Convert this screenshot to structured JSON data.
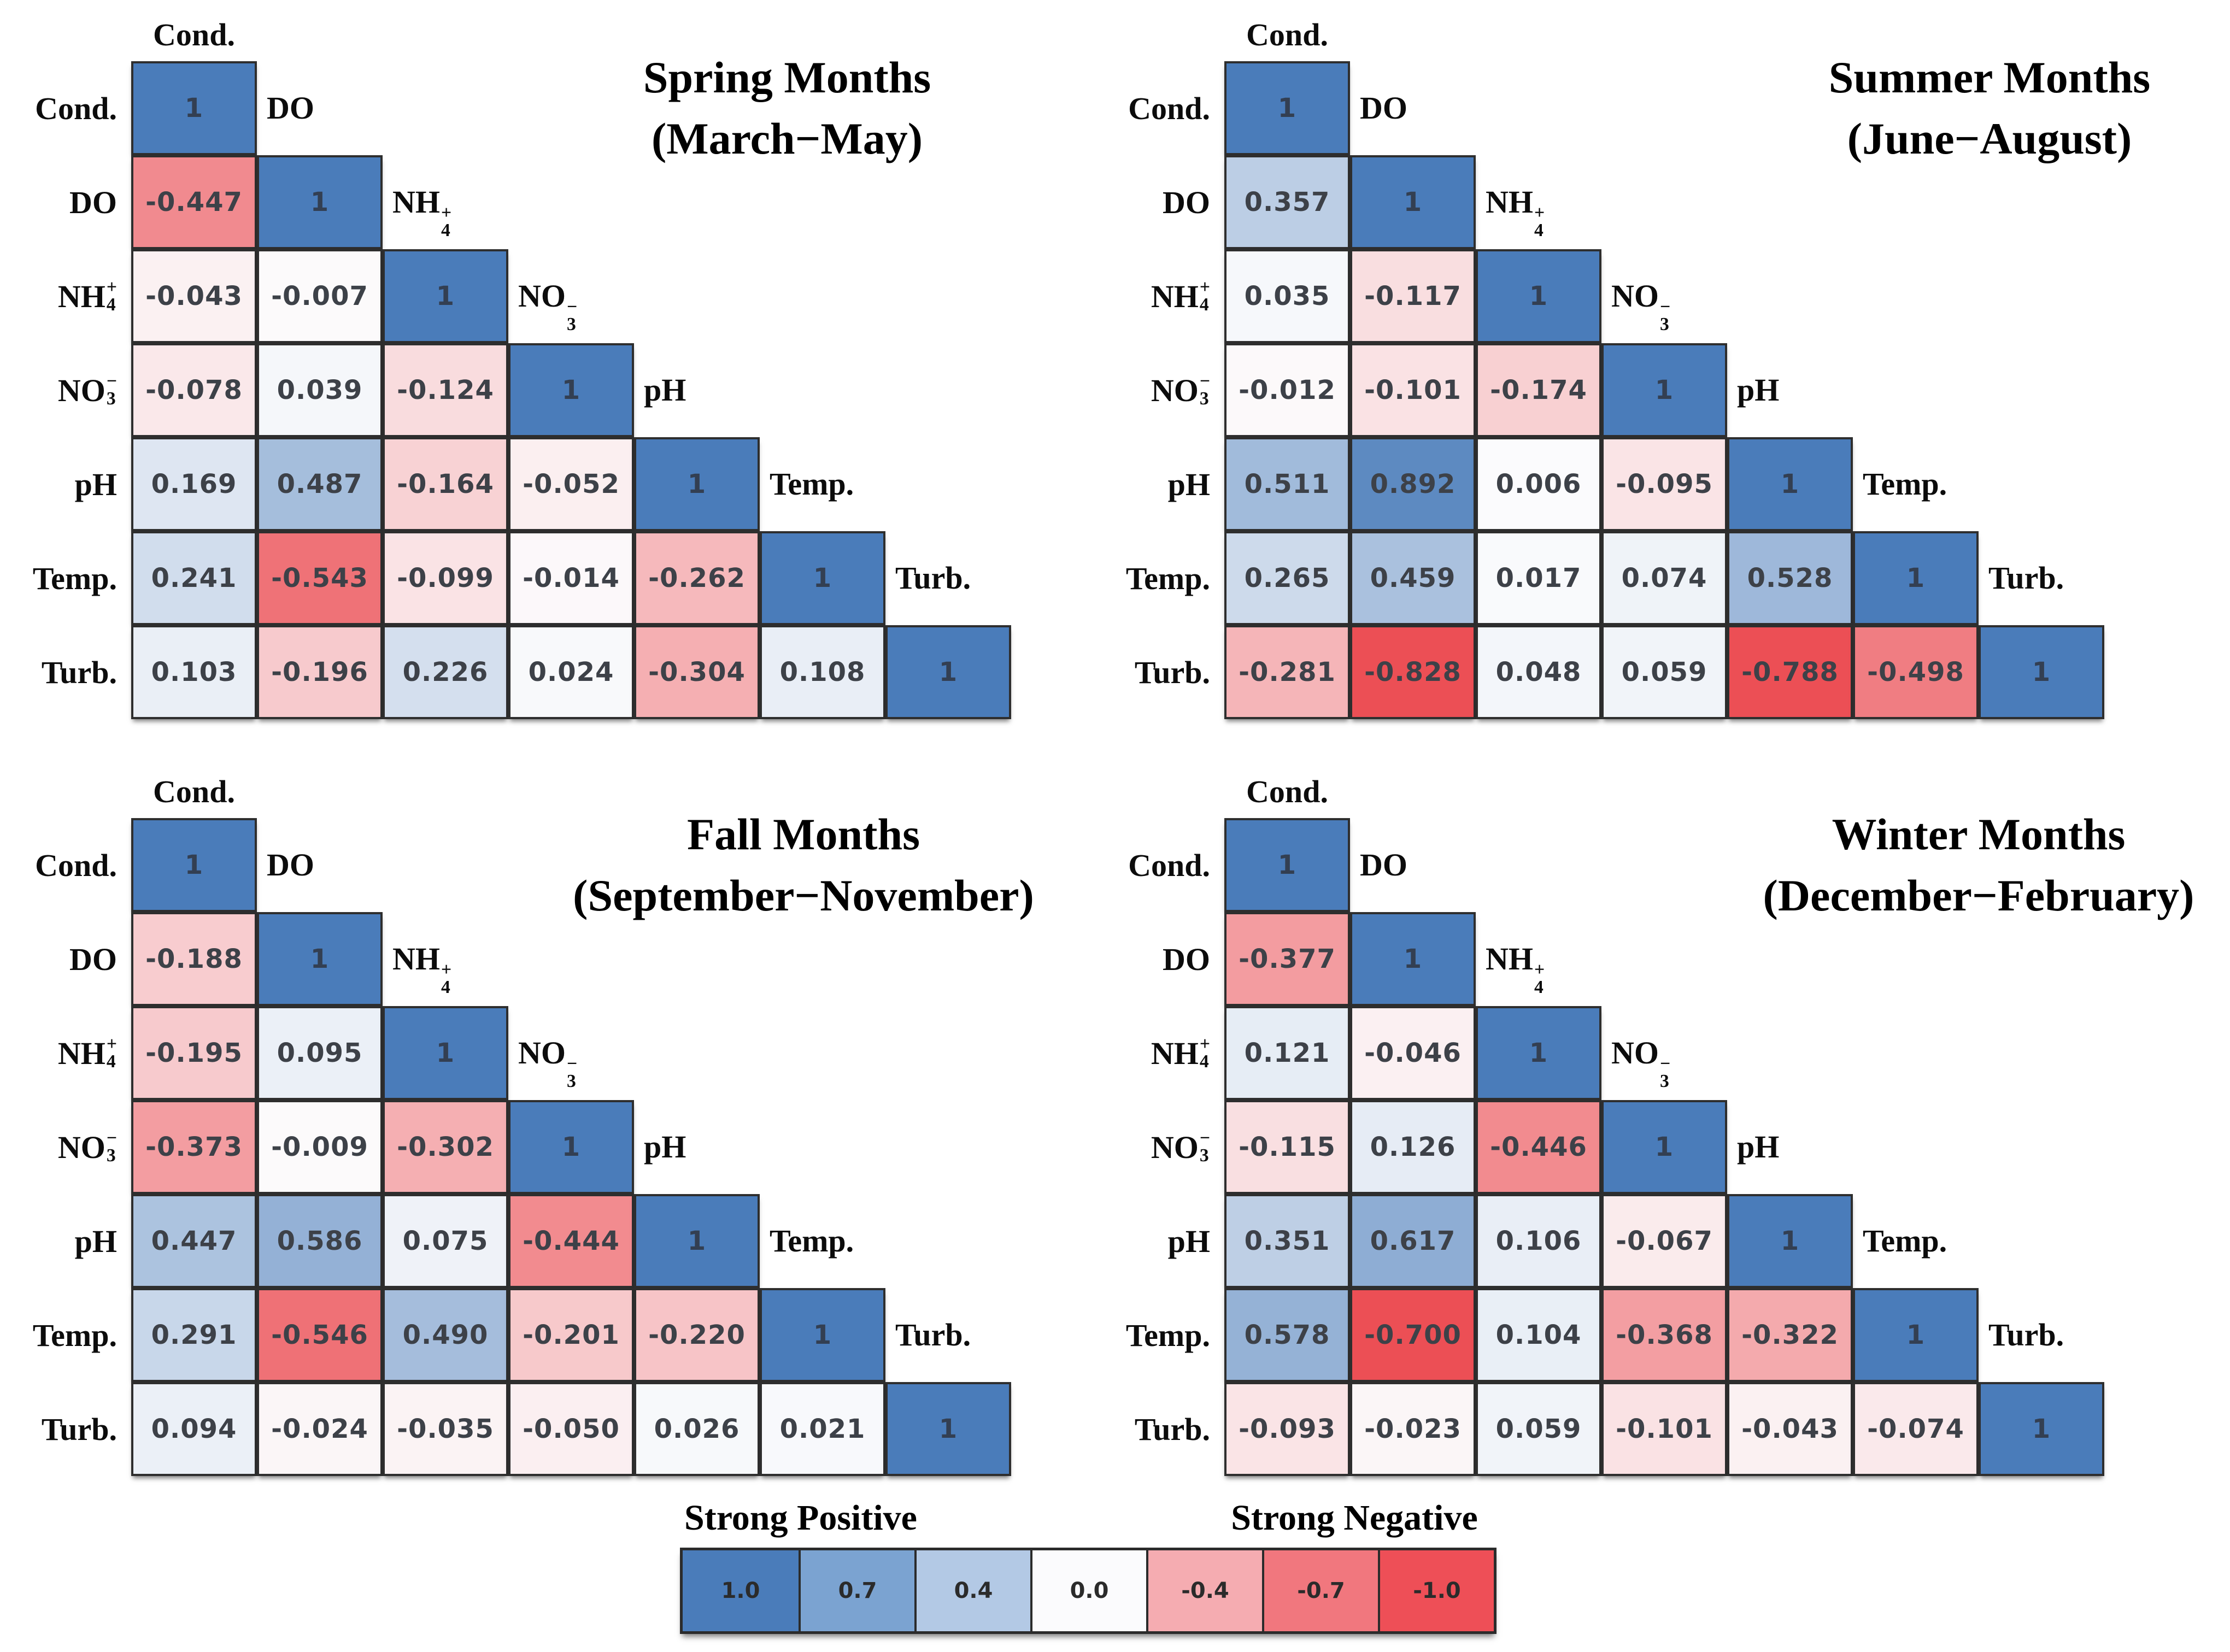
{
  "variables": [
    {
      "base": "Cond."
    },
    {
      "base": "DO"
    },
    {
      "base": "NH",
      "sub": "4",
      "sup": "+"
    },
    {
      "base": "NO",
      "sub": "3",
      "sup": "−"
    },
    {
      "base": "pH"
    },
    {
      "base": "Temp."
    },
    {
      "base": "Turb."
    }
  ],
  "palette": {
    "strong_positive": "#4a7cba",
    "strong_negative": "#ec4f55",
    "neutral": "#fcfcfd",
    "cell_text": "#3d4148",
    "diagonal_text": "#333f52",
    "border": "#2e2e2e",
    "label_text": "#0c0c0c",
    "blue_saturation_point": 1.0,
    "red_saturation_point": 0.68
  },
  "legend": {
    "positive_label": "Strong Positive",
    "negative_label": "Strong Negative",
    "stops": [
      {
        "label": "1.0",
        "color": "#4a7cba"
      },
      {
        "label": "0.7",
        "color": "#7ba3d1"
      },
      {
        "label": "0.4",
        "color": "#b3c9e5"
      },
      {
        "label": "0.0",
        "color": "#fbfbfd"
      },
      {
        "label": "-0.4",
        "color": "#f5acb1"
      },
      {
        "label": "-0.7",
        "color": "#f1777e"
      },
      {
        "label": "-1.0",
        "color": "#ee4f57"
      }
    ]
  },
  "chart_data": [
    {
      "type": "heatmap",
      "season": "Spring",
      "title": "Spring Months",
      "subtitle": "(March−May)",
      "variables": [
        "Cond.",
        "DO",
        "NH4+",
        "NO3-",
        "pH",
        "Temp.",
        "Turb."
      ],
      "lower_triangle": [
        [
          1
        ],
        [
          -0.447,
          1
        ],
        [
          -0.043,
          -0.007,
          1
        ],
        [
          -0.078,
          0.039,
          -0.124,
          1
        ],
        [
          0.169,
          0.487,
          -0.164,
          -0.052,
          1
        ],
        [
          0.241,
          -0.543,
          -0.099,
          -0.014,
          -0.262,
          1
        ],
        [
          0.103,
          -0.196,
          0.226,
          0.024,
          -0.304,
          0.108,
          1
        ]
      ]
    },
    {
      "type": "heatmap",
      "season": "Summer",
      "title": "Summer Months",
      "subtitle": "(June−August)",
      "variables": [
        "Cond.",
        "DO",
        "NH4+",
        "NO3-",
        "pH",
        "Temp.",
        "Turb."
      ],
      "lower_triangle": [
        [
          1
        ],
        [
          0.357,
          1
        ],
        [
          0.035,
          -0.117,
          1
        ],
        [
          -0.012,
          -0.101,
          -0.174,
          1
        ],
        [
          0.511,
          0.892,
          0.006,
          -0.095,
          1
        ],
        [
          0.265,
          0.459,
          0.017,
          0.074,
          0.528,
          1
        ],
        [
          -0.281,
          -0.828,
          0.048,
          0.059,
          -0.788,
          -0.498,
          1
        ]
      ]
    },
    {
      "type": "heatmap",
      "season": "Fall",
      "title": "Fall Months",
      "subtitle": "(September−November)",
      "variables": [
        "Cond.",
        "DO",
        "NH4+",
        "NO3-",
        "pH",
        "Temp.",
        "Turb."
      ],
      "lower_triangle": [
        [
          1
        ],
        [
          -0.188,
          1
        ],
        [
          -0.195,
          0.095,
          1
        ],
        [
          -0.373,
          -0.009,
          -0.302,
          1
        ],
        [
          0.447,
          0.586,
          0.075,
          -0.444,
          1
        ],
        [
          0.291,
          -0.546,
          0.49,
          -0.201,
          -0.22,
          1
        ],
        [
          0.094,
          -0.024,
          -0.035,
          -0.05,
          0.026,
          0.021,
          1
        ]
      ]
    },
    {
      "type": "heatmap",
      "season": "Winter",
      "title": "Winter Months",
      "subtitle": "(December−February)",
      "variables": [
        "Cond.",
        "DO",
        "NH4+",
        "NO3-",
        "pH",
        "Temp.",
        "Turb."
      ],
      "lower_triangle": [
        [
          1
        ],
        [
          -0.377,
          1
        ],
        [
          0.121,
          -0.046,
          1
        ],
        [
          -0.115,
          0.126,
          -0.446,
          1
        ],
        [
          0.351,
          0.617,
          0.106,
          -0.067,
          1
        ],
        [
          0.578,
          -0.7,
          0.104,
          -0.368,
          -0.322,
          1
        ],
        [
          -0.093,
          -0.023,
          0.059,
          -0.101,
          -0.043,
          -0.074,
          1
        ]
      ]
    }
  ]
}
